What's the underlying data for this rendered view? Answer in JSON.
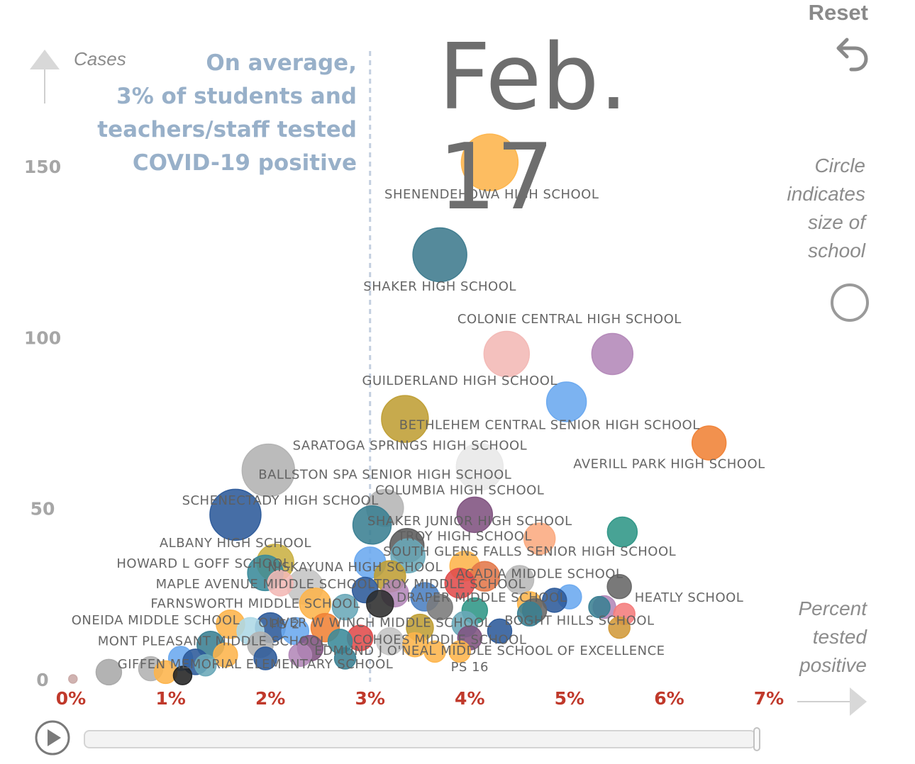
{
  "header": {
    "date": "Feb. 17",
    "reset_label": "Reset"
  },
  "annotation": {
    "line1": "On average,",
    "line2": "3% of students and",
    "line3": "teachers/staff tested",
    "line4": "COVID-19 positive"
  },
  "notes": {
    "size_lines": [
      "Circle",
      "indicates",
      "size of",
      "school"
    ],
    "pct_lines": [
      "Percent",
      "tested",
      "positive"
    ]
  },
  "colors": {
    "axis_x_labels": "#c0392b",
    "axis_y_labels": "#a6a6a6",
    "annotation": "#98b0c9",
    "average_line": "#c3cfdf"
  },
  "chart_data": {
    "type": "scatter",
    "xlabel": "Percent tested positive",
    "ylabel": "Cases",
    "xlim": [
      0,
      7
    ],
    "ylim": [
      0,
      160
    ],
    "x_ticks": [
      {
        "value": 0,
        "label": "0%"
      },
      {
        "value": 1,
        "label": "1%"
      },
      {
        "value": 2,
        "label": "2%"
      },
      {
        "value": 3,
        "label": "3%"
      },
      {
        "value": 4,
        "label": "4%"
      },
      {
        "value": 5,
        "label": "5%"
      },
      {
        "value": 6,
        "label": "6%"
      },
      {
        "value": 7,
        "label": "7%"
      }
    ],
    "y_ticks": [
      {
        "value": 0,
        "label": "0"
      },
      {
        "value": 50,
        "label": "50"
      },
      {
        "value": 100,
        "label": "100"
      },
      {
        "value": 150,
        "label": "150"
      }
    ],
    "average_pct": 3,
    "grid": false,
    "points": [
      {
        "name": "SHENENDEHOWA HIGH SCHOOL",
        "x": 4.2,
        "y": 151,
        "r": 40,
        "color": "#fdb44b"
      },
      {
        "name": "SHAKER HIGH SCHOOL",
        "x": 3.7,
        "y": 124,
        "r": 38,
        "color": "#3d7a8d"
      },
      {
        "name": "COLONIE CENTRAL HIGH SCHOOL",
        "x": 5.43,
        "y": 95,
        "r": 29,
        "color": "#b388b8"
      },
      {
        "name": "GUILDERLAND HIGH SCHOOL",
        "x": 4.37,
        "y": 95,
        "r": 32,
        "color": "#f2b8b5"
      },
      {
        "name": "",
        "x": 4.97,
        "y": 81,
        "r": 28,
        "color": "#6aa9ef"
      },
      {
        "name": "BETHLEHEM CENTRAL SENIOR HIGH SCHOOL",
        "x": 3.35,
        "y": 76,
        "r": 33,
        "color": "#bf9e34"
      },
      {
        "name": "AVERILL PARK HIGH SCHOOL",
        "x": 6.4,
        "y": 69,
        "r": 24,
        "color": "#f08236"
      },
      {
        "name": "SARATOGA SPRINGS HIGH SCHOOL",
        "x": 1.98,
        "y": 61,
        "r": 37,
        "color": "#b2b2b2"
      },
      {
        "name": "BALLSTON SPA SENIOR HIGH SCHOOL",
        "x": 4.1,
        "y": 62,
        "r": 33,
        "color": "#e8e8e8"
      },
      {
        "name": "COLUMBIA HIGH SCHOOL",
        "x": 3.15,
        "y": 50,
        "r": 26,
        "color": "#b5b5b5"
      },
      {
        "name": "SCHENECTADY HIGH SCHOOL",
        "x": 1.65,
        "y": 48,
        "r": 36,
        "color": "#2c5a9a"
      },
      {
        "name": "SHAKER JUNIOR HIGH SCHOOL",
        "x": 4.05,
        "y": 48,
        "r": 25,
        "color": "#7f527f"
      },
      {
        "name": "",
        "x": 3.02,
        "y": 45,
        "r": 27,
        "color": "#3a7f92"
      },
      {
        "name": "",
        "x": 5.53,
        "y": 43,
        "r": 21,
        "color": "#2f9686"
      },
      {
        "name": "TROY HIGH SCHOOL",
        "x": 3.37,
        "y": 39,
        "r": 24,
        "color": "#5b5b5b"
      },
      {
        "name": "",
        "x": 4.7,
        "y": 41,
        "r": 22,
        "color": "#fbaa7f"
      },
      {
        "name": "SOUTH GLENS FALLS SENIOR HIGH SCHOOL",
        "x": 3.38,
        "y": 36,
        "r": 24,
        "color": "#6aa8b8"
      },
      {
        "name": "ALBANY HIGH SCHOOL",
        "x": 2.05,
        "y": 34,
        "r": 26,
        "color": "#c9b043"
      },
      {
        "name": "",
        "x": 3.0,
        "y": 34,
        "r": 22,
        "color": "#6aa9ef"
      },
      {
        "name": "HOWARD L GOFF SCHOOL",
        "x": 1.95,
        "y": 31,
        "r": 25,
        "color": "#3a8a9a"
      },
      {
        "name": "NISKAYUNA HIGH SCHOOL",
        "x": 3.2,
        "y": 30,
        "r": 22,
        "color": "#bf9e34"
      },
      {
        "name": "",
        "x": 3.95,
        "y": 33,
        "r": 21,
        "color": "#fdb44b"
      },
      {
        "name": "",
        "x": 4.15,
        "y": 30,
        "r": 21,
        "color": "#e3784a"
      },
      {
        "name": "ACADIA MIDDLE SCHOOL",
        "x": 4.5,
        "y": 29,
        "r": 20,
        "color": "#b8b8b8"
      },
      {
        "name": "MAPLE AVENUE MIDDLE SCHOOL",
        "x": 2.35,
        "y": 27,
        "r": 25,
        "color": "#c4c4c4"
      },
      {
        "name": "",
        "x": 2.1,
        "y": 28,
        "r": 18,
        "color": "#f2b8b5"
      },
      {
        "name": "TROY MIDDLE SCHOOL",
        "x": 3.9,
        "y": 28,
        "r": 21,
        "color": "#e04b4b"
      },
      {
        "name": "",
        "x": 5.5,
        "y": 27,
        "r": 17,
        "color": "#666666"
      },
      {
        "name": "DRAPER MIDDLE SCHOOL",
        "x": 3.55,
        "y": 24,
        "r": 20,
        "color": "#4b7fc2"
      },
      {
        "name": "",
        "x": 2.95,
        "y": 26,
        "r": 18,
        "color": "#2c5a9a"
      },
      {
        "name": "",
        "x": 3.25,
        "y": 25,
        "r": 19,
        "color": "#b388b8"
      },
      {
        "name": "",
        "x": 5.0,
        "y": 24,
        "r": 17,
        "color": "#6aa9ef"
      },
      {
        "name": "",
        "x": 4.85,
        "y": 23,
        "r": 17,
        "color": "#2c5a9a"
      },
      {
        "name": "",
        "x": 4.6,
        "y": 22,
        "r": 17,
        "color": "#fdb44b"
      },
      {
        "name": "HEATLY SCHOOL",
        "x": 5.35,
        "y": 21,
        "r": 16,
        "color": "#b388b8"
      },
      {
        "name": "",
        "x": 5.3,
        "y": 21,
        "r": 15,
        "color": "#3a7f92"
      },
      {
        "name": "FARNSWORTH MIDDLE SCHOOL",
        "x": 2.45,
        "y": 22,
        "r": 22,
        "color": "#fdb44b"
      },
      {
        "name": "",
        "x": 2.75,
        "y": 21,
        "r": 18,
        "color": "#6aa8b8"
      },
      {
        "name": "",
        "x": 3.1,
        "y": 22,
        "r": 19,
        "color": "#2c2c2c"
      },
      {
        "name": "",
        "x": 3.7,
        "y": 21,
        "r": 18,
        "color": "#7a7a7a"
      },
      {
        "name": "",
        "x": 4.05,
        "y": 20,
        "r": 18,
        "color": "#2f9686"
      },
      {
        "name": "",
        "x": 4.65,
        "y": 20,
        "r": 17,
        "color": "#666666"
      },
      {
        "name": "",
        "x": 5.55,
        "y": 19,
        "r": 15,
        "color": "#f47c7c"
      },
      {
        "name": "BOGHT HILLS SCHOOL",
        "x": 4.6,
        "y": 19,
        "r": 17,
        "color": "#3a7f92"
      },
      {
        "name": "",
        "x": 5.5,
        "y": 15,
        "r": 15,
        "color": "#d29a3a"
      },
      {
        "name": "ONEIDA MIDDLE SCHOOL",
        "x": 1.6,
        "y": 16,
        "r": 20,
        "color": "#fdb44b"
      },
      {
        "name": "PS 2",
        "x": 2.0,
        "y": 15,
        "r": 21,
        "color": "#2c5a9a"
      },
      {
        "name": "OLIVER W WINCH MIDDLE SCHOOL",
        "x": 2.55,
        "y": 15,
        "r": 20,
        "color": "#f08236"
      },
      {
        "name": "",
        "x": 1.8,
        "y": 14,
        "r": 19,
        "color": "#add8e6"
      },
      {
        "name": "",
        "x": 2.25,
        "y": 14,
        "r": 19,
        "color": "#6aa9ef"
      },
      {
        "name": "",
        "x": 3.5,
        "y": 15,
        "r": 19,
        "color": "#bf9e34"
      },
      {
        "name": "",
        "x": 3.95,
        "y": 16,
        "r": 18,
        "color": "#6aa8b8"
      },
      {
        "name": "",
        "x": 4.3,
        "y": 14,
        "r": 17,
        "color": "#2c5a9a"
      },
      {
        "name": "COHOES MIDDLE SCHOOL",
        "x": 3.2,
        "y": 11,
        "r": 19,
        "color": "#c4c4c4"
      },
      {
        "name": "",
        "x": 2.9,
        "y": 12,
        "r": 18,
        "color": "#e04b4b"
      },
      {
        "name": "",
        "x": 4.0,
        "y": 12,
        "r": 17,
        "color": "#7f527f"
      },
      {
        "name": "MONT PLEASANT MIDDLE SCHOOL",
        "x": 1.4,
        "y": 10,
        "r": 19,
        "color": "#3a7f92"
      },
      {
        "name": "",
        "x": 1.9,
        "y": 10,
        "r": 18,
        "color": "#b2b2b2"
      },
      {
        "name": "",
        "x": 2.4,
        "y": 9,
        "r": 18,
        "color": "#7f527f"
      },
      {
        "name": "",
        "x": 2.7,
        "y": 11,
        "r": 17,
        "color": "#3a8a9a"
      },
      {
        "name": "",
        "x": 3.45,
        "y": 10,
        "r": 17,
        "color": "#fdb44b"
      },
      {
        "name": "EDMUND J O'NEAL MIDDLE SCHOOL OF EXCELLENCE",
        "x": 3.9,
        "y": 8,
        "r": 15,
        "color": "#fdb44b"
      },
      {
        "name": "",
        "x": 1.1,
        "y": 6,
        "r": 17,
        "color": "#6aa9ef"
      },
      {
        "name": "",
        "x": 1.25,
        "y": 5,
        "r": 18,
        "color": "#2c5a9a"
      },
      {
        "name": "",
        "x": 1.55,
        "y": 7,
        "r": 17,
        "color": "#fdb44b"
      },
      {
        "name": "",
        "x": 1.95,
        "y": 6,
        "r": 16,
        "color": "#2c5a9a"
      },
      {
        "name": "",
        "x": 2.3,
        "y": 7,
        "r": 16,
        "color": "#b388b8"
      },
      {
        "name": "",
        "x": 2.75,
        "y": 6,
        "r": 15,
        "color": "#3a7f92"
      },
      {
        "name": "GIFFEN MEMORIAL ELEMENTARY SCHOOL",
        "x": 0.38,
        "y": 2,
        "r": 18,
        "color": "#a9a9a9"
      },
      {
        "name": "",
        "x": 0.8,
        "y": 3,
        "r": 17,
        "color": "#b2b2b2"
      },
      {
        "name": "",
        "x": 0.95,
        "y": 2,
        "r": 16,
        "color": "#fdb44b"
      },
      {
        "name": "",
        "x": 1.12,
        "y": 1,
        "r": 13,
        "color": "#222222"
      },
      {
        "name": "",
        "x": 1.35,
        "y": 4,
        "r": 15,
        "color": "#6aa8b8"
      },
      {
        "name": "",
        "x": 0.02,
        "y": 0,
        "r": 6,
        "color": "#c9a9a6"
      },
      {
        "name": "PS 16",
        "x": 3.65,
        "y": 8,
        "r": 15,
        "color": "#fdb44b"
      }
    ],
    "labels": [
      {
        "text": "SHENENDEHOWA HIGH SCHOOL",
        "x": 4.22,
        "y": 140.5
      },
      {
        "text": "SHAKER HIGH SCHOOL",
        "x": 3.7,
        "y": 113.5
      },
      {
        "text": "COLONIE CENTRAL HIGH SCHOOL",
        "x": 5.0,
        "y": 104.0
      },
      {
        "text": "GUILDERLAND HIGH SCHOOL",
        "x": 3.9,
        "y": 86.0
      },
      {
        "text": "BETHLEHEM CENTRAL SENIOR HIGH SCHOOL",
        "x": 4.8,
        "y": 73.0
      },
      {
        "text": "SARATOGA SPRINGS HIGH SCHOOL",
        "x": 3.4,
        "y": 67.0
      },
      {
        "text": "AVERILL PARK HIGH SCHOOL",
        "x": 6.0,
        "y": 61.6
      },
      {
        "text": "BALLSTON SPA SENIOR HIGH SCHOOL",
        "x": 3.15,
        "y": 58.5
      },
      {
        "text": "COLUMBIA HIGH SCHOOL",
        "x": 3.9,
        "y": 54.0
      },
      {
        "text": "SCHENECTADY HIGH SCHOOL",
        "x": 2.1,
        "y": 51.0
      },
      {
        "text": "SHAKER JUNIOR HIGH SCHOOL",
        "x": 4.0,
        "y": 45.0
      },
      {
        "text": "TROY HIGH SCHOOL",
        "x": 3.95,
        "y": 40.5
      },
      {
        "text": "SOUTH GLENS FALLS SENIOR HIGH SCHOOL",
        "x": 4.6,
        "y": 36.0
      },
      {
        "text": "ALBANY HIGH SCHOOL",
        "x": 1.65,
        "y": 38.5
      },
      {
        "text": "HOWARD L GOFF SCHOOL",
        "x": 1.33,
        "y": 32.5
      },
      {
        "text": "NISKAYUNA HIGH SCHOOL",
        "x": 2.85,
        "y": 31.5
      },
      {
        "text": "ACADIA MIDDLE SCHOOL",
        "x": 4.7,
        "y": 29.5
      },
      {
        "text": "MAPLE AVENUE MIDDLE SCHOOL",
        "x": 1.95,
        "y": 26.5
      },
      {
        "text": "TROY MIDDLE SCHOOL",
        "x": 3.8,
        "y": 26.5
      },
      {
        "text": "HEATLY SCHOOL",
        "x": 6.2,
        "y": 22.6
      },
      {
        "text": "DRAPER MIDDLE SCHOOL",
        "x": 4.12,
        "y": 22.6
      },
      {
        "text": "FARNSWORTH MIDDLE SCHOOL",
        "x": 1.85,
        "y": 20.8
      },
      {
        "text": "ONEIDA MIDDLE SCHOOL",
        "x": 0.85,
        "y": 16.0
      },
      {
        "text": "PS 2",
        "x": 2.15,
        "y": 14.8
      },
      {
        "text": "OLIVER W WINCH MIDDLE SCHOOL",
        "x": 3.05,
        "y": 15.2
      },
      {
        "text": "BOGHT HILLS SCHOOL",
        "x": 5.1,
        "y": 15.9
      },
      {
        "text": "COHOES MIDDLE SCHOOL",
        "x": 3.7,
        "y": 10.3
      },
      {
        "text": "MONT PLEASANT MIDDLE SCHOOL",
        "x": 1.42,
        "y": 9.8
      },
      {
        "text": "EDMUND J O'NEAL MIDDLE SCHOOL OF EXCELLENCE",
        "x": 4.2,
        "y": 7.0
      },
      {
        "text": "GIFFEN MEMORIAL ELEMENTARY SCHOOL",
        "x": 1.85,
        "y": 3.1
      },
      {
        "text": "PS 16",
        "x": 4.0,
        "y": 2.3
      }
    ]
  },
  "controls": {
    "timeline_position": 1.0
  }
}
